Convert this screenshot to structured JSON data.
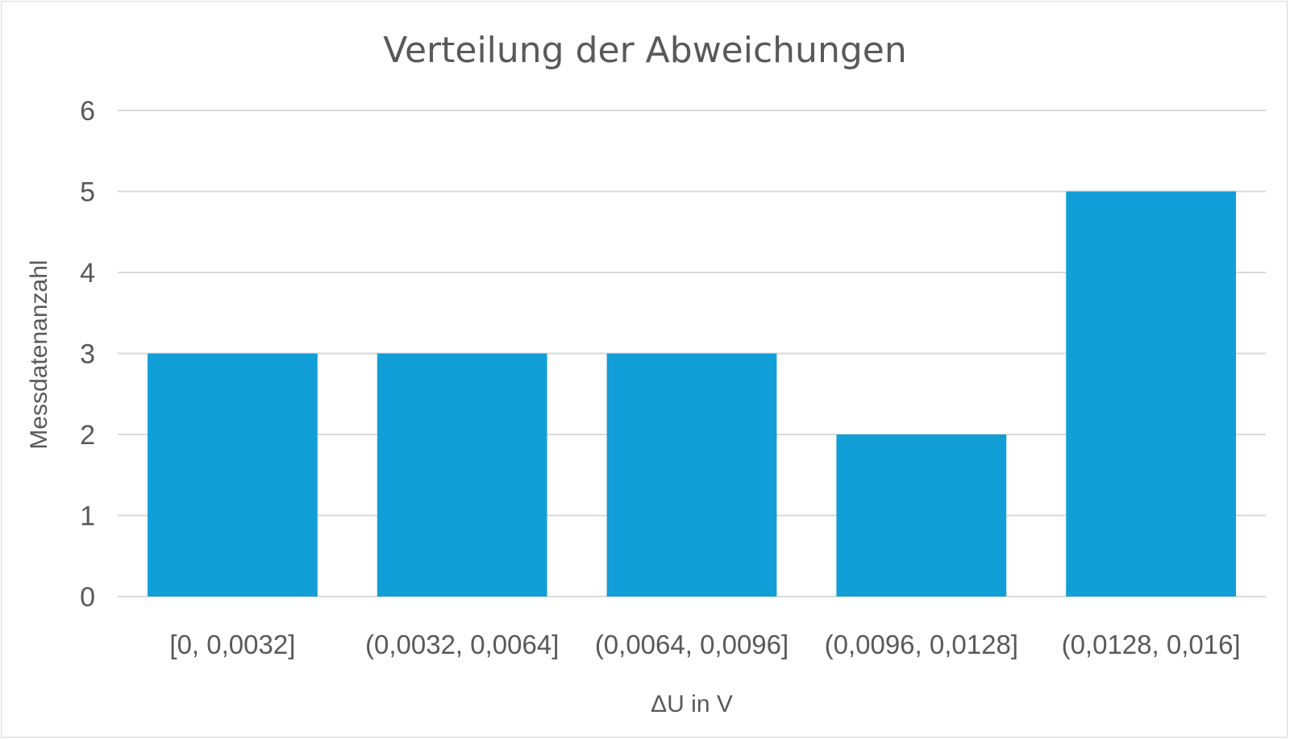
{
  "chart_data": {
    "type": "bar",
    "title": "Verteilung der Abweichungen",
    "xlabel": "ΔU in V",
    "ylabel": "Messdatenanzahl",
    "categories": [
      "[0, 0,0032]",
      "(0,0032, 0,0064]",
      "(0,0064, 0,0096]",
      "(0,0096, 0,0128]",
      "(0,0128, 0,016]"
    ],
    "values": [
      3,
      3,
      3,
      2,
      5
    ],
    "ylim": [
      0,
      6
    ],
    "yticks": [
      "0",
      "1",
      "2",
      "3",
      "4",
      "5",
      "6"
    ],
    "grid": true,
    "legend": "none",
    "bar_color": "#129ED7"
  }
}
